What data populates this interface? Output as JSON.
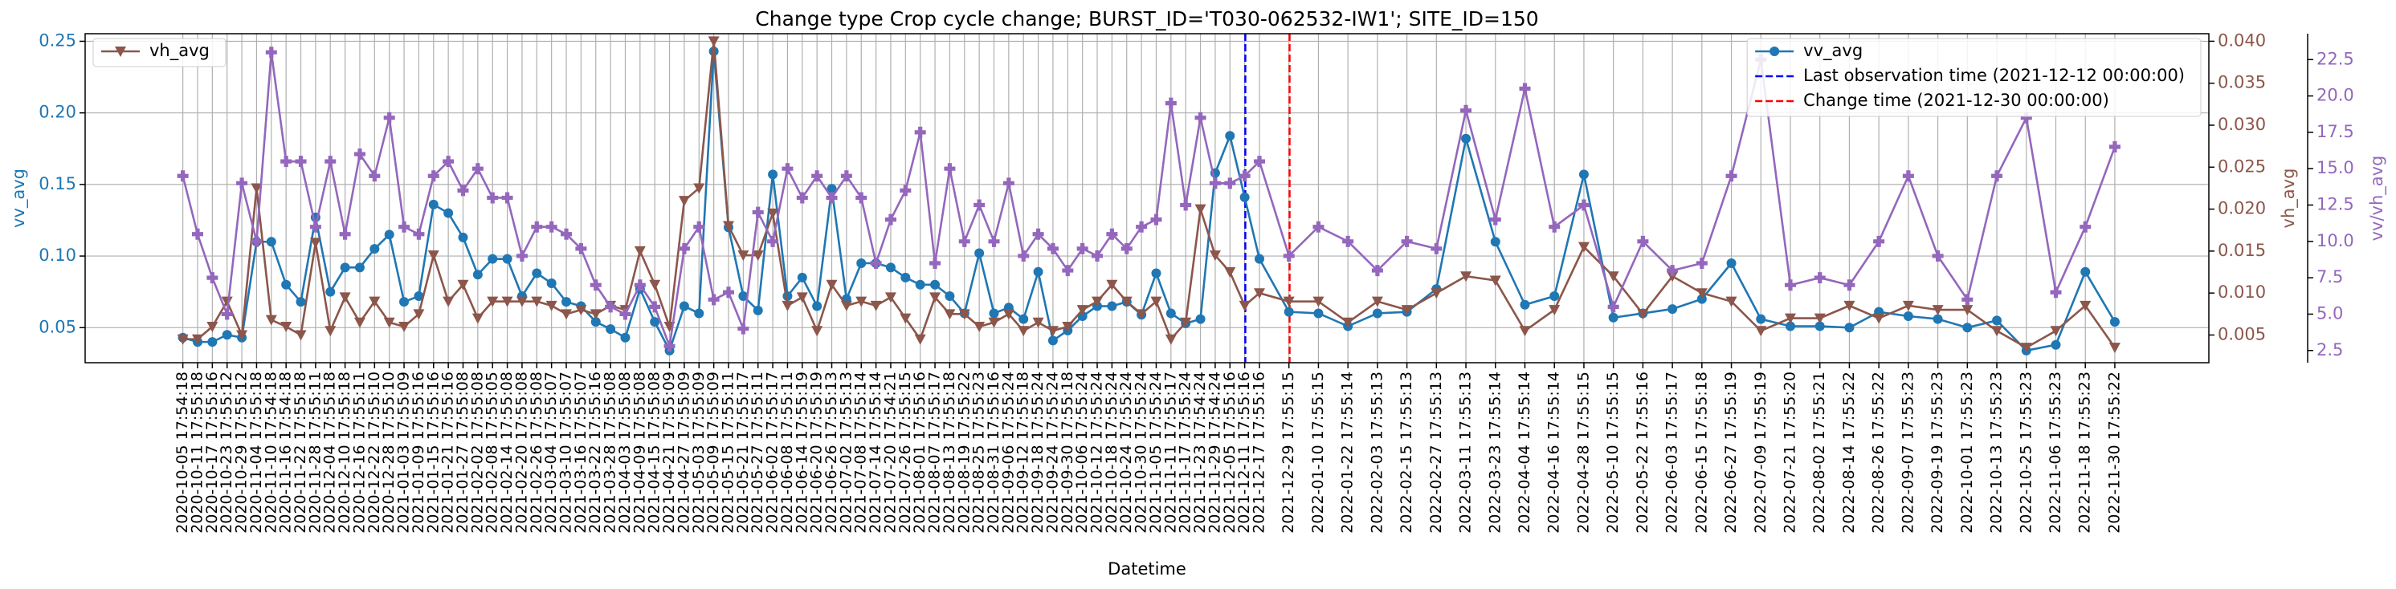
{
  "chart_data": {
    "type": "line",
    "title": "Change type Crop cycle change; BURST_ID='T030-062532-IW1'; SITE_ID=150",
    "xlabel": "Datetime",
    "ylabel": "vv_avg",
    "y2label": "vh_avg",
    "y3label": "vv/vh_avg",
    "grid": true,
    "x": [
      "2020-10-05 17:54:18",
      "2020-10-11 17:55:18",
      "2020-10-17 17:55:16",
      "2020-10-23 17:55:12",
      "2020-10-29 17:55:12",
      "2020-11-04 17:55:18",
      "2020-11-10 17:54:18",
      "2020-11-16 17:54:18",
      "2020-11-22 17:55:18",
      "2020-11-28 17:55:11",
      "2020-12-04 17:55:18",
      "2020-12-10 17:55:18",
      "2020-12-16 17:55:11",
      "2020-12-22 17:55:10",
      "2020-12-28 17:55:10",
      "2021-01-03 17:55:09",
      "2021-01-09 17:55:16",
      "2021-01-15 17:55:16",
      "2021-01-21 17:55:16",
      "2021-01-27 17:55:08",
      "2021-02-02 17:55:08",
      "2021-02-08 17:55:05",
      "2021-02-14 17:55:08",
      "2021-02-20 17:55:08",
      "2021-02-26 17:55:08",
      "2021-03-04 17:55:07",
      "2021-03-10 17:55:07",
      "2021-03-16 17:55:07",
      "2021-03-22 17:55:16",
      "2021-03-28 17:55:08",
      "2021-04-03 17:55:08",
      "2021-04-09 17:55:08",
      "2021-04-15 17:55:08",
      "2021-04-21 17:55:09",
      "2021-04-27 17:55:09",
      "2021-05-03 17:55:09",
      "2021-05-09 17:55:09",
      "2021-05-15 17:55:11",
      "2021-05-21 17:55:17",
      "2021-05-27 17:55:11",
      "2021-06-02 17:55:17",
      "2021-06-08 17:55:11",
      "2021-06-14 17:55:19",
      "2021-06-20 17:55:19",
      "2021-06-26 17:55:13",
      "2021-07-02 17:55:13",
      "2021-07-08 17:55:14",
      "2021-07-14 17:55:14",
      "2021-07-20 17:54:21",
      "2021-07-26 17:55:15",
      "2021-08-01 17:55:16",
      "2021-08-07 17:55:17",
      "2021-08-13 17:55:18",
      "2021-08-19 17:55:22",
      "2021-08-25 17:55:23",
      "2021-08-31 17:55:16",
      "2021-09-06 17:55:24",
      "2021-09-12 17:55:18",
      "2021-09-18 17:55:24",
      "2021-09-24 17:55:24",
      "2021-09-30 17:55:18",
      "2021-10-06 17:55:24",
      "2021-10-12 17:55:24",
      "2021-10-18 17:55:24",
      "2021-10-24 17:55:24",
      "2021-10-30 17:55:24",
      "2021-11-05 17:55:24",
      "2021-11-11 17:55:17",
      "2021-11-17 17:55:24",
      "2021-11-23 17:54:24",
      "2021-11-29 17:54:24",
      "2021-12-05 17:55:16",
      "2021-12-11 17:55:16",
      "2021-12-17 17:55:16",
      "2021-12-29 17:55:15",
      "2022-01-10 17:55:15",
      "2022-01-22 17:55:14",
      "2022-02-03 17:55:13",
      "2022-02-15 17:55:13",
      "2022-02-27 17:55:13",
      "2022-03-11 17:55:13",
      "2022-03-23 17:55:14",
      "2022-04-04 17:55:14",
      "2022-04-16 17:55:14",
      "2022-04-28 17:55:15",
      "2022-05-10 17:55:15",
      "2022-05-22 17:55:16",
      "2022-06-03 17:55:17",
      "2022-06-15 17:55:18",
      "2022-06-27 17:55:19",
      "2022-07-09 17:55:19",
      "2022-07-21 17:55:20",
      "2022-08-02 17:55:21",
      "2022-08-14 17:55:22",
      "2022-08-26 17:55:22",
      "2022-09-07 17:55:23",
      "2022-09-19 17:55:23",
      "2022-10-01 17:55:23",
      "2022-10-13 17:55:23",
      "2022-10-25 17:55:23",
      "2022-11-06 17:55:23",
      "2022-11-18 17:55:23",
      "2022-11-30 17:55:22"
    ],
    "xlim": [
      "2020-08-27 00:00:00",
      "2023-01-08 00:00:00"
    ],
    "ylim": [
      0.0255,
      0.2553
    ],
    "yticks": [
      0.05,
      {
        "value": 0.1,
        "label": "0.10"
      },
      0.15,
      {
        "value": 0.2,
        "label": "0.20"
      },
      0.25
    ],
    "y2lim": [
      0.0017,
      0.0409
    ],
    "y2ticks": [
      0.005,
      {
        "value": 0.01,
        "label": "0.010"
      },
      0.015,
      {
        "value": 0.02,
        "label": "0.020"
      },
      0.025,
      {
        "value": 0.03,
        "label": "0.030"
      },
      0.035,
      {
        "value": 0.04,
        "label": "0.040"
      }
    ],
    "y3lim": [
      1.66,
      24.28
    ],
    "y3ticks": [
      2.5,
      {
        "value": 5,
        "label": "5.0"
      },
      7.5,
      {
        "value": 10,
        "label": "10.0"
      },
      12.5,
      {
        "value": 15,
        "label": "15.0"
      },
      17.5,
      {
        "value": 20,
        "label": "20.0"
      },
      22.5
    ],
    "series": [
      {
        "name": "vv_avg",
        "color": "#1f77b4",
        "axis": "y",
        "marker": "circle",
        "legend": "upper right",
        "values": [
          0.043,
          0.04,
          0.04,
          0.045,
          0.043,
          0.11,
          0.11,
          0.08,
          0.068,
          0.127,
          0.075,
          0.092,
          0.092,
          0.105,
          0.115,
          0.068,
          0.072,
          0.136,
          0.13,
          0.113,
          0.087,
          0.098,
          0.098,
          0.072,
          0.088,
          0.081,
          0.068,
          0.065,
          0.054,
          0.049,
          0.043,
          0.077,
          0.054,
          0.034,
          0.065,
          0.06,
          0.243,
          0.12,
          0.072,
          0.062,
          0.157,
          0.072,
          0.085,
          0.065,
          0.147,
          0.07,
          0.095,
          0.095,
          0.092,
          0.085,
          0.08,
          0.08,
          0.072,
          0.06,
          0.102,
          0.06,
          0.064,
          0.056,
          0.089,
          0.041,
          0.048,
          0.058,
          0.065,
          0.065,
          0.068,
          0.059,
          0.088,
          0.06,
          0.053,
          0.056,
          0.158,
          0.184,
          0.141,
          0.098,
          0.061,
          0.06,
          0.051,
          0.06,
          0.061,
          0.077,
          0.182,
          0.11,
          0.066,
          0.072,
          0.157,
          0.057,
          0.06,
          0.063,
          0.07,
          0.095,
          0.056,
          0.051,
          0.051,
          0.05,
          0.061,
          0.058,
          0.056,
          0.05,
          0.055,
          0.034,
          0.038,
          0.089,
          0.054
        ]
      },
      {
        "name": "vh_avg",
        "color": "#8c564b",
        "axis": "y2",
        "marker": "triangle-down",
        "legend": "upper left",
        "values": [
          0.0045,
          0.0045,
          0.006,
          0.009,
          0.005,
          0.0225,
          0.0068,
          0.006,
          0.005,
          0.016,
          0.0055,
          0.0095,
          0.0065,
          0.009,
          0.0065,
          0.006,
          0.0075,
          0.0145,
          0.009,
          0.011,
          0.007,
          0.009,
          0.009,
          0.009,
          0.009,
          0.0085,
          0.0075,
          0.008,
          0.0075,
          0.0085,
          0.008,
          0.015,
          0.011,
          0.006,
          0.021,
          0.0225,
          0.04,
          0.018,
          0.0145,
          0.0145,
          0.0195,
          0.0085,
          0.0095,
          0.0055,
          0.011,
          0.0085,
          0.009,
          0.0085,
          0.0095,
          0.007,
          0.0045,
          0.0095,
          0.0075,
          0.0075,
          0.006,
          0.0065,
          0.0075,
          0.0055,
          0.0065,
          0.0055,
          0.006,
          0.008,
          0.009,
          0.011,
          0.009,
          0.0075,
          0.009,
          0.0045,
          0.0065,
          0.02,
          0.0145,
          0.0125,
          0.0085,
          0.01,
          0.009,
          0.009,
          0.0065,
          0.009,
          0.008,
          0.01,
          0.012,
          0.0115,
          0.0055,
          0.008,
          0.0155,
          0.012,
          0.0075,
          0.012,
          0.01,
          0.009,
          0.0055,
          0.007,
          0.007,
          0.0085,
          0.007,
          0.0085,
          0.008,
          0.008,
          0.0055,
          0.0035,
          0.0055,
          0.0085,
          0.0035
        ]
      },
      {
        "name": "vv/vh_avg",
        "color": "#9467bd",
        "axis": "y3",
        "marker": "plus",
        "values": [
          14.5,
          10.5,
          7.5,
          5.0,
          14.0,
          10.0,
          23.0,
          15.5,
          15.5,
          11.0,
          15.5,
          10.5,
          16.0,
          14.5,
          18.5,
          11.0,
          10.5,
          14.5,
          15.5,
          13.5,
          15.0,
          13.0,
          13.0,
          9.0,
          11.0,
          11.0,
          10.5,
          9.5,
          7.0,
          5.5,
          5.0,
          7.0,
          5.5,
          2.8,
          9.5,
          11.0,
          6.0,
          6.5,
          4.0,
          12.0,
          10.0,
          15.0,
          13.0,
          14.5,
          13.0,
          14.5,
          13.0,
          8.5,
          11.5,
          13.5,
          17.5,
          8.5,
          15.0,
          10.0,
          12.5,
          10.0,
          14.0,
          9.0,
          10.5,
          9.5,
          8.0,
          9.5,
          9.0,
          10.5,
          9.5,
          11.0,
          11.5,
          19.5,
          12.5,
          18.5,
          14.0,
          14.0,
          14.5,
          15.5,
          9.0,
          11.0,
          10.0,
          8.0,
          10.0,
          9.5,
          19.0,
          11.5,
          20.5,
          11.0,
          12.5,
          5.5,
          10.0,
          8.0,
          8.5,
          14.5,
          22.5,
          7.0,
          7.5,
          7.0,
          10.0,
          14.5,
          9.0,
          6.0,
          14.5,
          18.5,
          6.5,
          11.0,
          16.5
        ]
      }
    ],
    "vlines": [
      {
        "name": "Last observation time (2021-12-12 00:00:00)",
        "x": "2021-12-12 00:00:00",
        "color": "#0000ff",
        "legend": "upper right"
      },
      {
        "name": "Change time (2021-12-30 00:00:00)",
        "x": "2021-12-30 00:00:00",
        "color": "#ff0000",
        "legend": "upper right"
      }
    ]
  }
}
